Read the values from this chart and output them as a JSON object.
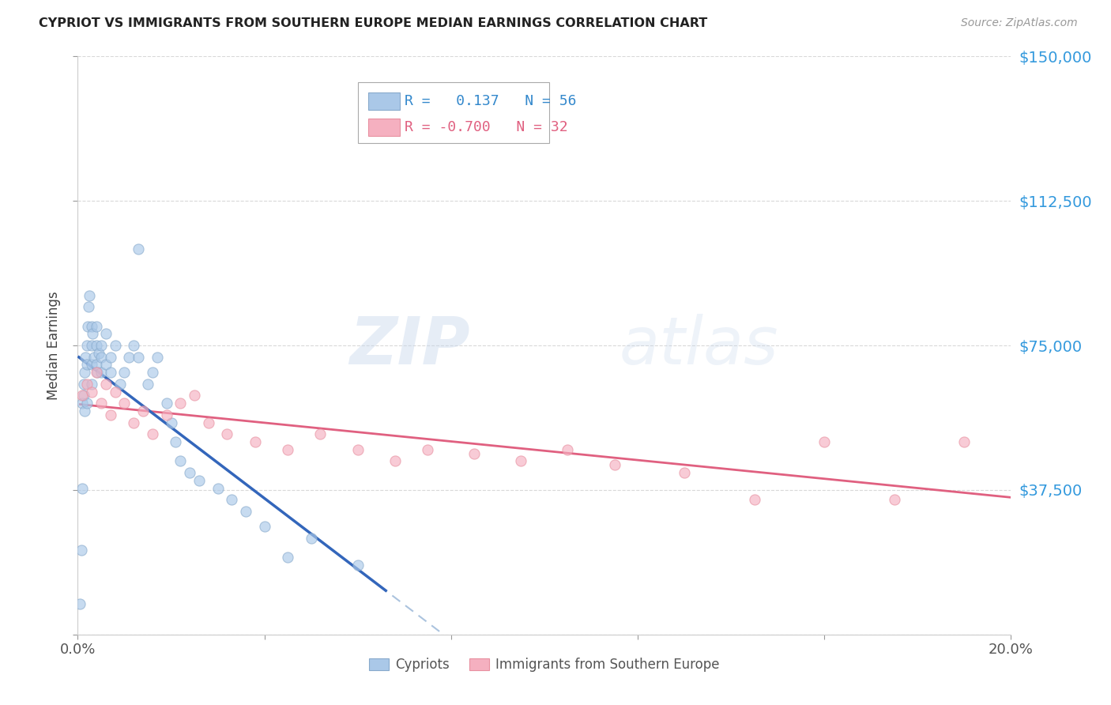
{
  "title": "CYPRIOT VS IMMIGRANTS FROM SOUTHERN EUROPE MEDIAN EARNINGS CORRELATION CHART",
  "source": "Source: ZipAtlas.com",
  "ylabel": "Median Earnings",
  "xlim": [
    0.0,
    0.2
  ],
  "ylim": [
    0,
    150000
  ],
  "yticks": [
    0,
    37500,
    75000,
    112500,
    150000
  ],
  "ytick_labels": [
    "",
    "$37,500",
    "$75,000",
    "$112,500",
    "$150,000"
  ],
  "xticks": [
    0.0,
    0.04,
    0.08,
    0.12,
    0.16,
    0.2
  ],
  "xtick_labels": [
    "0.0%",
    "",
    "",
    "",
    "",
    "20.0%"
  ],
  "background_color": "#ffffff",
  "grid_color": "#d0d0d0",
  "watermark_zip": "ZIP",
  "watermark_atlas": "atlas",
  "series1": {
    "label": "Cypriots",
    "R": "0.137",
    "N": "56",
    "color": "#aac8e8",
    "edge_color": "#88aacc",
    "line_color": "#3366bb",
    "line_color_dash": "#88aaccaa",
    "x": [
      0.0005,
      0.0008,
      0.001,
      0.001,
      0.0012,
      0.0013,
      0.0015,
      0.0015,
      0.0017,
      0.002,
      0.002,
      0.002,
      0.0022,
      0.0023,
      0.0025,
      0.003,
      0.003,
      0.003,
      0.003,
      0.0032,
      0.0035,
      0.004,
      0.004,
      0.004,
      0.0042,
      0.0045,
      0.005,
      0.005,
      0.005,
      0.006,
      0.006,
      0.007,
      0.007,
      0.008,
      0.009,
      0.01,
      0.011,
      0.012,
      0.013,
      0.013,
      0.015,
      0.016,
      0.017,
      0.019,
      0.02,
      0.021,
      0.022,
      0.024,
      0.026,
      0.03,
      0.033,
      0.036,
      0.04,
      0.045,
      0.05,
      0.06
    ],
    "y": [
      8000,
      22000,
      38000,
      60000,
      62000,
      65000,
      58000,
      68000,
      72000,
      60000,
      70000,
      75000,
      80000,
      85000,
      88000,
      65000,
      70000,
      75000,
      80000,
      78000,
      72000,
      70000,
      75000,
      80000,
      68000,
      73000,
      72000,
      75000,
      68000,
      70000,
      78000,
      72000,
      68000,
      75000,
      65000,
      68000,
      72000,
      75000,
      100000,
      72000,
      65000,
      68000,
      72000,
      60000,
      55000,
      50000,
      45000,
      42000,
      40000,
      38000,
      35000,
      32000,
      28000,
      20000,
      25000,
      18000
    ]
  },
  "series2": {
    "label": "Immigrants from Southern Europe",
    "R": "-0.700",
    "N": "32",
    "color": "#f5b0c0",
    "edge_color": "#e890a0",
    "line_color": "#e06080",
    "x": [
      0.001,
      0.002,
      0.003,
      0.004,
      0.005,
      0.006,
      0.007,
      0.008,
      0.01,
      0.012,
      0.014,
      0.016,
      0.019,
      0.022,
      0.025,
      0.028,
      0.032,
      0.038,
      0.045,
      0.052,
      0.06,
      0.068,
      0.075,
      0.085,
      0.095,
      0.105,
      0.115,
      0.13,
      0.145,
      0.16,
      0.175,
      0.19
    ],
    "y": [
      62000,
      65000,
      63000,
      68000,
      60000,
      65000,
      57000,
      63000,
      60000,
      55000,
      58000,
      52000,
      57000,
      60000,
      62000,
      55000,
      52000,
      50000,
      48000,
      52000,
      48000,
      45000,
      48000,
      47000,
      45000,
      48000,
      44000,
      42000,
      35000,
      50000,
      35000,
      50000
    ]
  }
}
